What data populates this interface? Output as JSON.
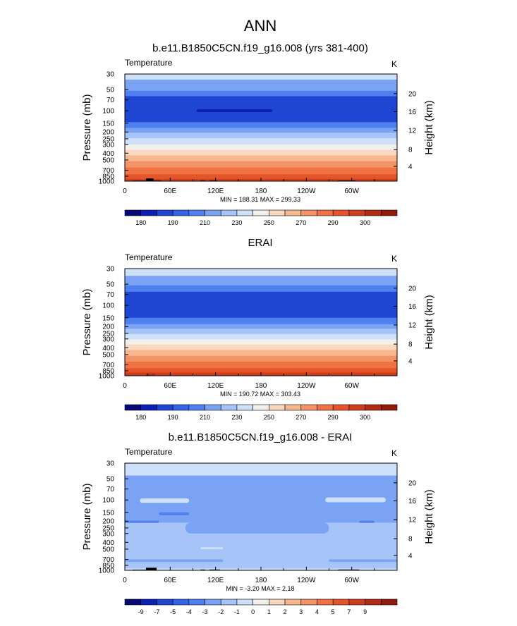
{
  "page": {
    "title": "ANN"
  },
  "chart_data": [
    {
      "type": "heatmap",
      "title": "b.e11.B1850C5CN.f19_g16.008 (yrs 381-400)",
      "variable": "Temperature",
      "units": "K",
      "ylabel": "Pressure (mb)",
      "y2label": "Height (km)",
      "y_ticks": [
        "30",
        "50",
        "70",
        "100",
        "150",
        "200",
        "250",
        "300",
        "400",
        "500",
        "700",
        "850",
        "1000"
      ],
      "y2_ticks": [
        "20",
        "16",
        "12",
        "8",
        "4"
      ],
      "x_ticks": [
        "0",
        "60E",
        "120E",
        "180",
        "120W",
        "60W"
      ],
      "stats": "MIN = 188.31  MAX = 299.33",
      "colorbar_labels": [
        "180",
        "190",
        "210",
        "230",
        "250",
        "270",
        "290",
        "300"
      ],
      "colorbar_colors": [
        "#050a76",
        "#0d20b4",
        "#1e46d2",
        "#3366e6",
        "#4f80f0",
        "#7aa2f5",
        "#a6c4f8",
        "#cfe0fa",
        "#f2f0ea",
        "#fad8c0",
        "#f7b890",
        "#f49466",
        "#ef7343",
        "#e4562a",
        "#cf3f1b",
        "#b02c12",
        "#8e1b0c"
      ],
      "bands": [
        {
          "p_top": 30,
          "p_bot": 36,
          "color": "#cfe0fa"
        },
        {
          "p_top": 36,
          "p_bot": 52,
          "color": "#7aa2f5"
        },
        {
          "p_top": 52,
          "p_bot": 62,
          "color": "#4f80f0"
        },
        {
          "p_top": 62,
          "p_bot": 145,
          "color": "#1e46d2"
        },
        {
          "p_top": 145,
          "p_bot": 175,
          "color": "#4f80f0"
        },
        {
          "p_top": 175,
          "p_bot": 205,
          "color": "#7aa2f5"
        },
        {
          "p_top": 205,
          "p_bot": 245,
          "color": "#a6c4f8"
        },
        {
          "p_top": 245,
          "p_bot": 300,
          "color": "#cfe0fa"
        },
        {
          "p_top": 300,
          "p_bot": 360,
          "color": "#f2f0ea"
        },
        {
          "p_top": 360,
          "p_bot": 430,
          "color": "#fad8c0"
        },
        {
          "p_top": 430,
          "p_bot": 520,
          "color": "#f7b890"
        },
        {
          "p_top": 520,
          "p_bot": 640,
          "color": "#f49466"
        },
        {
          "p_top": 640,
          "p_bot": 800,
          "color": "#ef7343"
        },
        {
          "p_top": 800,
          "p_bot": 930,
          "color": "#e4562a"
        },
        {
          "p_top": 930,
          "p_bot": 1000,
          "color": "#cf3f1b"
        }
      ],
      "patches": [
        {
          "lon_start": 95,
          "lon_end": 195,
          "p_top": 95,
          "p_bot": 104,
          "color": "#0d20b4"
        }
      ],
      "terrain": [
        {
          "lon_start": 10,
          "lon_end": 28,
          "p_top": 980
        },
        {
          "lon_start": 28,
          "lon_end": 38,
          "p_top": 915
        },
        {
          "lon_start": 38,
          "lon_end": 48,
          "p_top": 975
        },
        {
          "lon_start": 100,
          "lon_end": 106,
          "p_top": 975
        },
        {
          "lon_start": 112,
          "lon_end": 122,
          "p_top": 975
        },
        {
          "lon_start": 282,
          "lon_end": 305,
          "p_top": 975
        }
      ]
    },
    {
      "type": "heatmap",
      "title": "ERAI",
      "variable": "Temperature",
      "units": "K",
      "ylabel": "Pressure (mb)",
      "y2label": "Height (km)",
      "y_ticks": [
        "30",
        "50",
        "70",
        "100",
        "150",
        "200",
        "250",
        "300",
        "400",
        "500",
        "700",
        "850",
        "1000"
      ],
      "y2_ticks": [
        "20",
        "16",
        "12",
        "8",
        "4"
      ],
      "x_ticks": [
        "0",
        "60E",
        "120E",
        "180",
        "120W",
        "60W"
      ],
      "stats": "MIN = 190.72  MAX = 303.43",
      "colorbar_labels": [
        "180",
        "190",
        "210",
        "230",
        "250",
        "270",
        "290",
        "300"
      ],
      "colorbar_colors": [
        "#050a76",
        "#0d20b4",
        "#1e46d2",
        "#3366e6",
        "#4f80f0",
        "#7aa2f5",
        "#a6c4f8",
        "#cfe0fa",
        "#f2f0ea",
        "#fad8c0",
        "#f7b890",
        "#f49466",
        "#ef7343",
        "#e4562a",
        "#cf3f1b",
        "#b02c12",
        "#8e1b0c"
      ],
      "bands": [
        {
          "p_top": 30,
          "p_bot": 38,
          "color": "#cfe0fa"
        },
        {
          "p_top": 38,
          "p_bot": 52,
          "color": "#7aa2f5"
        },
        {
          "p_top": 52,
          "p_bot": 64,
          "color": "#4f80f0"
        },
        {
          "p_top": 64,
          "p_bot": 150,
          "color": "#1e46d2"
        },
        {
          "p_top": 150,
          "p_bot": 185,
          "color": "#4f80f0"
        },
        {
          "p_top": 185,
          "p_bot": 215,
          "color": "#7aa2f5"
        },
        {
          "p_top": 215,
          "p_bot": 255,
          "color": "#a6c4f8"
        },
        {
          "p_top": 255,
          "p_bot": 305,
          "color": "#cfe0fa"
        },
        {
          "p_top": 305,
          "p_bot": 360,
          "color": "#f2f0ea"
        },
        {
          "p_top": 360,
          "p_bot": 430,
          "color": "#fad8c0"
        },
        {
          "p_top": 430,
          "p_bot": 520,
          "color": "#f7b890"
        },
        {
          "p_top": 520,
          "p_bot": 630,
          "color": "#f49466"
        },
        {
          "p_top": 630,
          "p_bot": 780,
          "color": "#ef7343"
        },
        {
          "p_top": 780,
          "p_bot": 900,
          "color": "#e4562a"
        },
        {
          "p_top": 900,
          "p_bot": 1000,
          "color": "#cf3f1b"
        }
      ],
      "patches": [],
      "terrain": [
        {
          "lon_start": 28,
          "lon_end": 40,
          "p_top": 930,
          "color": "#b02c12"
        }
      ]
    },
    {
      "type": "heatmap",
      "title": "b.e11.B1850C5CN.f19_g16.008 - ERAI",
      "variable": "Temperature",
      "units": "K",
      "ylabel": "Pressure (mb)",
      "y2label": "Height (km)",
      "y_ticks": [
        "30",
        "50",
        "70",
        "100",
        "150",
        "200",
        "250",
        "300",
        "400",
        "500",
        "700",
        "850",
        "1000"
      ],
      "y2_ticks": [
        "20",
        "16",
        "12",
        "8",
        "4"
      ],
      "x_ticks": [
        "0",
        "60E",
        "120E",
        "180",
        "120W",
        "60W"
      ],
      "stats": "MIN =  -3.20  MAX =   2.18",
      "colorbar_labels": [
        "-9",
        "-7",
        "-5",
        "-4",
        "-3",
        "-2",
        "-1",
        "0",
        "1",
        "2",
        "3",
        "4",
        "5",
        "7",
        "9"
      ],
      "colorbar_colors": [
        "#050a76",
        "#0d20b4",
        "#1e46d2",
        "#3366e6",
        "#4f80f0",
        "#7aa2f5",
        "#a6c4f8",
        "#cfe0fa",
        "#f2f0ea",
        "#fad8c0",
        "#f7b890",
        "#f49466",
        "#ef7343",
        "#e4562a",
        "#cf3f1b",
        "#b02c12",
        "#8e1b0c"
      ],
      "bands": [
        {
          "p_top": 30,
          "p_bot": 45,
          "color": "#cfe0fa"
        },
        {
          "p_top": 45,
          "p_bot": 1000,
          "color": "#a6c4f8"
        }
      ],
      "patches": [
        {
          "lon_start": 0,
          "lon_end": 360,
          "p_top": 45,
          "p_bot": 210,
          "color": "#7aa2f5"
        },
        {
          "lon_start": 80,
          "lon_end": 270,
          "p_top": 210,
          "p_bot": 300,
          "color": "#7aa2f5"
        },
        {
          "lon_start": 20,
          "lon_end": 85,
          "p_top": 95,
          "p_bot": 110,
          "color": "#cfe0fa"
        },
        {
          "lon_start": 265,
          "lon_end": 345,
          "p_top": 92,
          "p_bot": 108,
          "color": "#cfe0fa"
        },
        {
          "lon_start": 45,
          "lon_end": 85,
          "p_top": 150,
          "p_bot": 165,
          "color": "#4f80f0"
        },
        {
          "lon_start": 0,
          "lon_end": 45,
          "p_top": 198,
          "p_bot": 212,
          "color": "#4f80f0"
        },
        {
          "lon_start": 310,
          "lon_end": 330,
          "p_top": 198,
          "p_bot": 212,
          "color": "#4f80f0"
        },
        {
          "lon_start": 100,
          "lon_end": 130,
          "p_top": 470,
          "p_bot": 500,
          "color": "#cfe0fa"
        },
        {
          "lon_start": 0,
          "lon_end": 130,
          "p_top": 700,
          "p_bot": 760,
          "color": "#7aa2f5"
        },
        {
          "lon_start": 270,
          "lon_end": 360,
          "p_top": 700,
          "p_bot": 760,
          "color": "#7aa2f5"
        },
        {
          "lon_start": 0,
          "lon_end": 360,
          "p_top": 940,
          "p_bot": 1000,
          "color": "#cfe0fa"
        }
      ],
      "terrain": [
        {
          "lon_start": 10,
          "lon_end": 28,
          "p_top": 980
        },
        {
          "lon_start": 28,
          "lon_end": 42,
          "p_top": 920
        },
        {
          "lon_start": 100,
          "lon_end": 106,
          "p_top": 975
        },
        {
          "lon_start": 112,
          "lon_end": 126,
          "p_top": 975
        },
        {
          "lon_start": 282,
          "lon_end": 310,
          "p_top": 975
        }
      ]
    }
  ]
}
